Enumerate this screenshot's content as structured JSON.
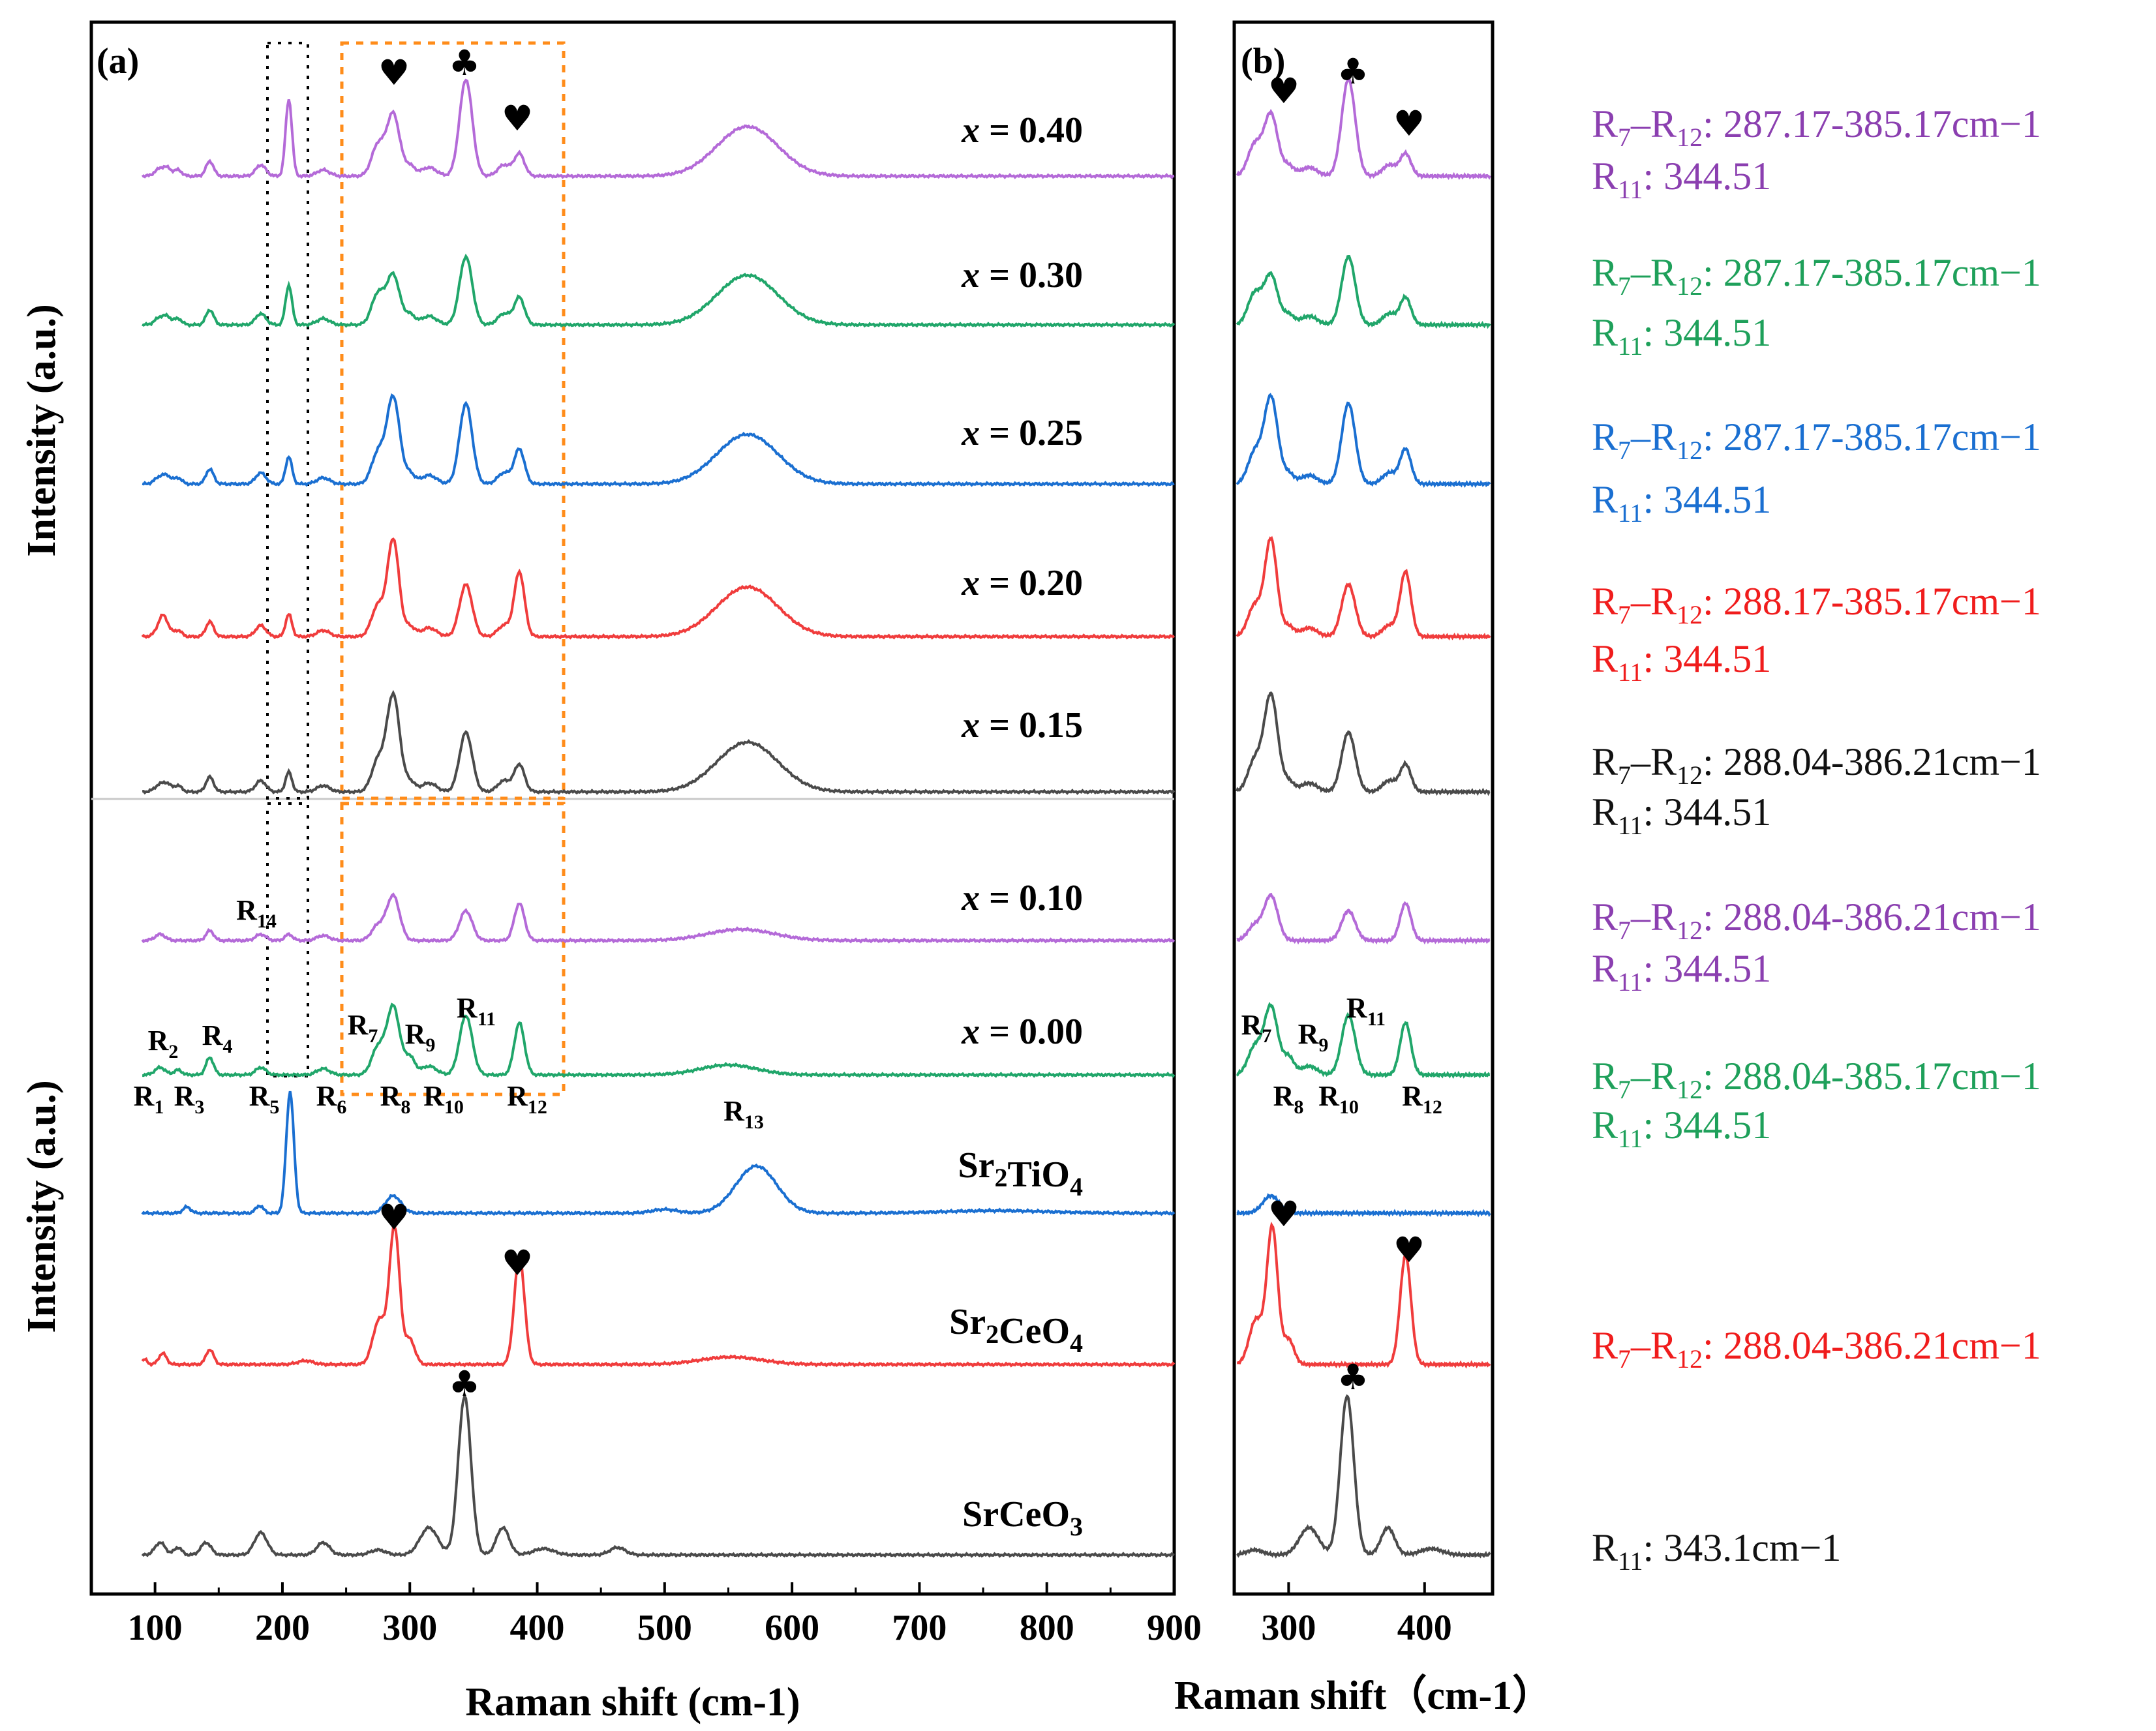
{
  "chart_data": [
    {
      "panel": "(a)",
      "type": "line",
      "xlabel": "Raman shift (cm-1)",
      "ylabel_top": "Intensity (a.u.)",
      "ylabel_bottom": "Intensity (a.u.)",
      "xlim": [
        50,
        900
      ],
      "xticks": [
        100,
        200,
        300,
        400,
        500,
        600,
        700,
        800,
        900
      ],
      "grid": false,
      "series": [
        {
          "name": "x = 0.40",
          "color": "#b46ad8"
        },
        {
          "name": "x = 0.30",
          "color": "#20a66a"
        },
        {
          "name": "x = 0.25",
          "color": "#1a6fd1"
        },
        {
          "name": "x = 0.20",
          "color": "#f03c3c"
        },
        {
          "name": "x = 0.15",
          "color": "#4a4a4a"
        },
        {
          "name": "x = 0.10",
          "color": "#b46ad8"
        },
        {
          "name": "x = 0.00",
          "color": "#20a66a"
        },
        {
          "name": "Sr2TiO4",
          "color": "#1a6fd1"
        },
        {
          "name": "Sr2CeO4",
          "color": "#f03c3c"
        },
        {
          "name": "SrCeO3",
          "color": "#4a4a4a"
        }
      ],
      "peak_labels": [
        "R1",
        "R2",
        "R3",
        "R4",
        "R5",
        "R6",
        "R7",
        "R8",
        "R9",
        "R10",
        "R11",
        "R12",
        "R13",
        "R14"
      ],
      "marker_symbols": {
        "heart": "♥",
        "club": "♣"
      }
    },
    {
      "panel": "(b)",
      "type": "line",
      "xlabel": "Raman shift（cm-1）",
      "xlim": [
        260,
        450
      ],
      "xticks": [
        300,
        400
      ],
      "peak_labels": [
        "R7",
        "R8",
        "R9",
        "R10",
        "R11",
        "R12"
      ]
    }
  ],
  "annotations": [
    {
      "range_label": "R7–R12: 287.17-385.17cm−1",
      "r11_label": "R11: 344.51",
      "color": "#8b3fb0"
    },
    {
      "range_label": "R7–R12: 287.17-385.17cm−1",
      "r11_label": "R11: 344.51",
      "color": "#1ea05a"
    },
    {
      "range_label": "R7–R12: 287.17-385.17cm−1",
      "r11_label": "R11: 344.51",
      "color": "#1a6fd1"
    },
    {
      "range_label": "R7–R12: 288.17-385.17cm−1",
      "r11_label": "R11: 344.51",
      "color": "#f01c1c"
    },
    {
      "range_label": "R7–R12: 288.04-386.21cm−1",
      "r11_label": "R11: 344.51",
      "color": "#111111"
    },
    {
      "range_label": "R7–R12: 288.04-386.21cm−1",
      "r11_label": "R11: 344.51",
      "color": "#8b3fb0"
    },
    {
      "range_label": "R7–R12: 288.04-385.17cm−1",
      "r11_label": "R11: 344.51",
      "color": "#1ea05a"
    },
    {
      "range_label": "R7–R12: 288.04-386.21cm−1",
      "color": "#f01c1c"
    },
    {
      "r11_label": "R11: 343.1cm−1",
      "color": "#111111"
    }
  ]
}
